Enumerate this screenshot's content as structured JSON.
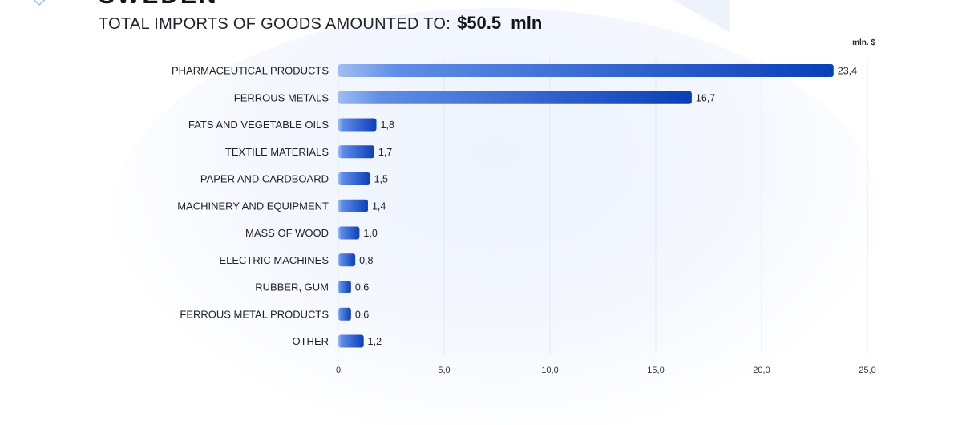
{
  "header": {
    "country": "SWEDEN",
    "label": "TOTAL IMPORTS OF GOODS AMOUNTED TO:",
    "value": "$50.5",
    "unit": "mln"
  },
  "colors": {
    "bar_start": "#9fbdf4",
    "bar_end": "#0a3fb8",
    "grid": "#e3e8f3"
  },
  "chart_data": {
    "type": "bar",
    "orientation": "horizontal",
    "unit_label": "mln. $",
    "categories": [
      "PHARMACEUTICAL PRODUCTS",
      "FERROUS METALS",
      "FATS AND VEGETABLE OILS",
      "TEXTILE MATERIALS",
      "PAPER AND CARDBOARD",
      "MACHINERY AND EQUIPMENT",
      "MASS OF WOOD",
      "ELECTRIC MACHINES",
      "RUBBER, GUM",
      "FERROUS METAL PRODUCTS",
      "OTHER"
    ],
    "values": [
      23.4,
      16.7,
      1.8,
      1.7,
      1.5,
      1.4,
      1.0,
      0.8,
      0.6,
      0.6,
      1.2
    ],
    "value_labels": [
      "23,4",
      "16,7",
      "1,8",
      "1,7",
      "1,5",
      "1,4",
      "1,0",
      "0,8",
      "0,6",
      "0,6",
      "1,2"
    ],
    "xlim": [
      0,
      25
    ],
    "ticks": [
      0,
      5,
      10,
      15,
      20,
      25
    ],
    "tick_labels": [
      "0",
      "5,0",
      "10,0",
      "15,0",
      "20,0",
      "25,0"
    ],
    "grid": true
  }
}
